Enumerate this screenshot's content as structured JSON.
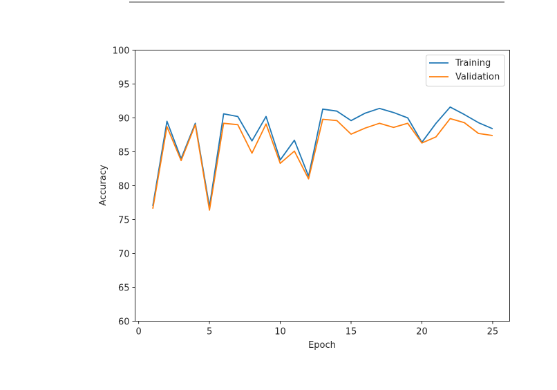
{
  "chart_data": {
    "type": "line",
    "title": "",
    "xlabel": "Epoch",
    "ylabel": "Accuracy",
    "xlim": [
      -0.25,
      26.2
    ],
    "ylim": [
      60,
      100
    ],
    "xticks": [
      0,
      5,
      10,
      15,
      20,
      25
    ],
    "yticks": [
      60,
      65,
      70,
      75,
      80,
      85,
      90,
      95,
      100
    ],
    "grid": false,
    "legend_position": "upper right",
    "x": [
      1,
      2,
      3,
      4,
      5,
      6,
      7,
      8,
      9,
      10,
      11,
      12,
      13,
      14,
      15,
      16,
      17,
      18,
      19,
      20,
      21,
      22,
      23,
      24,
      25
    ],
    "series": [
      {
        "name": "Training",
        "color": "#1f77b4",
        "values": [
          77.0,
          89.5,
          84.0,
          89.2,
          76.9,
          90.6,
          90.2,
          86.6,
          90.2,
          83.8,
          86.7,
          81.4,
          91.3,
          91.0,
          89.6,
          90.7,
          91.4,
          90.8,
          90.0,
          86.4,
          89.2,
          91.6,
          90.5,
          89.3,
          88.4
        ]
      },
      {
        "name": "Validation",
        "color": "#ff7f0e",
        "values": [
          76.6,
          88.7,
          83.7,
          89.0,
          76.4,
          89.2,
          89.0,
          84.8,
          89.1,
          83.3,
          85.1,
          81.0,
          89.8,
          89.6,
          87.6,
          88.5,
          89.2,
          88.6,
          89.2,
          86.3,
          87.2,
          89.9,
          89.3,
          87.7,
          87.4
        ]
      }
    ]
  }
}
